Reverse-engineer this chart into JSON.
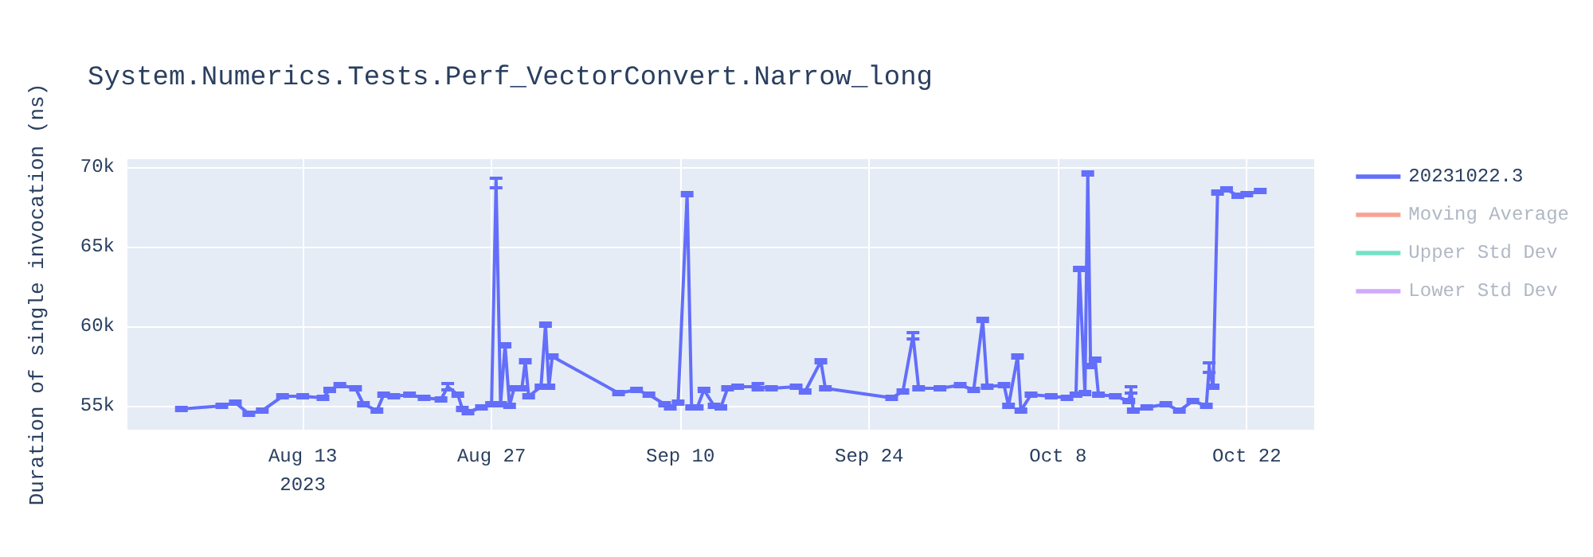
{
  "chart_data": {
    "type": "line",
    "title": "System.Numerics.Tests.Perf_VectorConvert.Narrow_long",
    "ylabel": "Duration of single invocation (ns)",
    "x": [
      "2023-08-04",
      "2023-08-07",
      "2023-08-08",
      "2023-08-09",
      "2023-08-10",
      "2023-08-11T12:00",
      "2023-08-13",
      "2023-08-14T12:00",
      "2023-08-15",
      "2023-08-15T18:00",
      "2023-08-16T22:00",
      "2023-08-17T12:00",
      "2023-08-18T12:00",
      "2023-08-19",
      "2023-08-19T18:00",
      "2023-08-20T22:00",
      "2023-08-22",
      "2023-08-23T06:00",
      "2023-08-23T18:00",
      "2023-08-24T12:00",
      "2023-08-24T20:00",
      "2023-08-25T06:00",
      "2023-08-26T06:00",
      "2023-08-27",
      "2023-08-27T08:00",
      "2023-08-27T16:00",
      "2023-08-28",
      "2023-08-28T08:00",
      "2023-08-28T16:00",
      "2023-08-29T06:00",
      "2023-08-29T12:00",
      "2023-08-29T18:00",
      "2023-08-30T16:00",
      "2023-08-31",
      "2023-08-31T06:00",
      "2023-08-31T12:00",
      "2023-09-05T10:00",
      "2023-09-06T18:00",
      "2023-09-07T16:00",
      "2023-09-08T20:00",
      "2023-09-09T06:00",
      "2023-09-09T20:00",
      "2023-09-10T12:00",
      "2023-09-10T20:00",
      "2023-09-11T06:00",
      "2023-09-11T18:00",
      "2023-09-12T12:00",
      "2023-09-13",
      "2023-09-13T12:00",
      "2023-09-14T06:00",
      "2023-09-15T18:00",
      "2023-09-16T18:00",
      "2023-09-18T14:00",
      "2023-09-19T06:00",
      "2023-09-20T10:00",
      "2023-09-20T18:00",
      "2023-09-25T16:00",
      "2023-09-26T12:00",
      "2023-09-27T06:00",
      "2023-09-27T16:00",
      "2023-09-29T06:00",
      "2023-09-30T18:00",
      "2023-10-01T18:00",
      "2023-10-02T10:00",
      "2023-10-02T18:00",
      "2023-10-04",
      "2023-10-04T08:00",
      "2023-10-05",
      "2023-10-05T06:00",
      "2023-10-06",
      "2023-10-07T12:00",
      "2023-10-08T16:00",
      "2023-10-09T08:00",
      "2023-10-09T14:00",
      "2023-10-10",
      "2023-10-10T05:00",
      "2023-10-10T10:00",
      "2023-10-10T18:00",
      "2023-10-11",
      "2023-10-12T06:00",
      "2023-10-13T06:00",
      "2023-10-13T10:00",
      "2023-10-13T14:00",
      "2023-10-14T14:00",
      "2023-10-16",
      "2023-10-17",
      "2023-10-18",
      "2023-10-19",
      "2023-10-19T05:00",
      "2023-10-19T12:00",
      "2023-10-19T20:00",
      "2023-10-20T12:00",
      "2023-10-21T08:00",
      "2023-10-22",
      "2023-10-23"
    ],
    "series": [
      {
        "name": "20231022.3",
        "color": "#636efa",
        "values": [
          54800,
          55000,
          55200,
          54500,
          54700,
          55600,
          55600,
          55500,
          56000,
          56300,
          56100,
          55100,
          54700,
          55700,
          55600,
          55700,
          55500,
          55400,
          56200,
          55700,
          54800,
          54600,
          54900,
          55100,
          69000,
          55100,
          58800,
          55000,
          56100,
          56100,
          57800,
          55600,
          56200,
          60100,
          56200,
          58100,
          55800,
          56000,
          55700,
          55100,
          54900,
          55200,
          68300,
          54900,
          54900,
          56000,
          55000,
          54900,
          56100,
          56200,
          56200,
          56100,
          56200,
          55900,
          57800,
          56100,
          55500,
          55900,
          59400,
          56100,
          56100,
          56300,
          56000,
          60400,
          56200,
          56300,
          55000,
          58100,
          54700,
          55700,
          55600,
          55500,
          55700,
          63600,
          55800,
          69600,
          57500,
          57900,
          55700,
          55600,
          55300,
          56000,
          54700,
          54900,
          55100,
          54700,
          55300,
          55000,
          57400,
          56200,
          68400,
          68600,
          68200,
          68300,
          68500
        ],
        "errors": [
          100,
          100,
          100,
          100,
          100,
          100,
          100,
          100,
          100,
          100,
          100,
          100,
          100,
          100,
          100,
          100,
          100,
          100,
          200,
          100,
          100,
          100,
          100,
          100,
          300,
          100,
          100,
          100,
          100,
          100,
          100,
          100,
          100,
          100,
          100,
          100,
          100,
          100,
          100,
          100,
          100,
          100,
          100,
          100,
          100,
          100,
          100,
          100,
          100,
          100,
          200,
          100,
          100,
          100,
          100,
          100,
          100,
          100,
          200,
          100,
          100,
          100,
          100,
          100,
          100,
          100,
          100,
          100,
          100,
          100,
          100,
          100,
          100,
          100,
          100,
          100,
          100,
          100,
          100,
          100,
          100,
          200,
          100,
          100,
          100,
          100,
          100,
          100,
          300,
          100,
          100,
          100,
          100,
          100,
          100
        ]
      },
      {
        "name": "Moving Average",
        "color": "#ef553b",
        "values": [
          null,
          null,
          null,
          null,
          null,
          null,
          null,
          null,
          null,
          null,
          null,
          null,
          null,
          null,
          null,
          null,
          null,
          null,
          null,
          null,
          null,
          null,
          null,
          null,
          null,
          null,
          null,
          null,
          null,
          null,
          null,
          null,
          null,
          null,
          null,
          null,
          null,
          null,
          null,
          null,
          null,
          null,
          null,
          null,
          null,
          null,
          null,
          null,
          null,
          null,
          null,
          null,
          null,
          null,
          null,
          null,
          null,
          null,
          null,
          null,
          null,
          null,
          null,
          null,
          null,
          null,
          null,
          null,
          null,
          null,
          null,
          null,
          null,
          null,
          null,
          null,
          null,
          null,
          null,
          null,
          null,
          null,
          null,
          null,
          null,
          null,
          null,
          null,
          null,
          null,
          null,
          null,
          null,
          null,
          null
        ]
      },
      {
        "name": "Upper Std Dev",
        "color": "#00cc96",
        "values": [
          null,
          null,
          null,
          null,
          null,
          null,
          null,
          null,
          null,
          null,
          null,
          null,
          null,
          null,
          null,
          null,
          null,
          null,
          null,
          null,
          null,
          null,
          null,
          null,
          null,
          null,
          null,
          null,
          null,
          null,
          null,
          null,
          null,
          null,
          null,
          null,
          null,
          null,
          null,
          null,
          null,
          null,
          null,
          null,
          null,
          null,
          null,
          null,
          null,
          null,
          null,
          null,
          null,
          null,
          null,
          null,
          null,
          null,
          null,
          null,
          null,
          null,
          null,
          null,
          null,
          null,
          null,
          null,
          null,
          null,
          null,
          null,
          null,
          null,
          null,
          null,
          null,
          null,
          null,
          null,
          null,
          null,
          null,
          null,
          null,
          null,
          null,
          null,
          null,
          null,
          null,
          null,
          null,
          null,
          null
        ]
      },
      {
        "name": "Lower Std Dev",
        "color": "#ab63fa",
        "values": [
          null,
          null,
          null,
          null,
          null,
          null,
          null,
          null,
          null,
          null,
          null,
          null,
          null,
          null,
          null,
          null,
          null,
          null,
          null,
          null,
          null,
          null,
          null,
          null,
          null,
          null,
          null,
          null,
          null,
          null,
          null,
          null,
          null,
          null,
          null,
          null,
          null,
          null,
          null,
          null,
          null,
          null,
          null,
          null,
          null,
          null,
          null,
          null,
          null,
          null,
          null,
          null,
          null,
          null,
          null,
          null,
          null,
          null,
          null,
          null,
          null,
          null,
          null,
          null,
          null,
          null,
          null,
          null,
          null,
          null,
          null,
          null,
          null,
          null,
          null,
          null,
          null,
          null,
          null,
          null,
          null,
          null,
          null,
          null,
          null,
          null,
          null,
          null,
          null,
          null,
          null,
          null,
          null,
          null,
          null
        ]
      }
    ],
    "xlim": [
      "2023-07-31",
      "2023-10-27"
    ],
    "xticks": [
      {
        "value": "2023-08-13",
        "label": "Aug 13\n2023"
      },
      {
        "value": "2023-08-27",
        "label": "Aug 27"
      },
      {
        "value": "2023-09-10",
        "label": "Sep 10"
      },
      {
        "value": "2023-09-24",
        "label": "Sep 24"
      },
      {
        "value": "2023-10-08",
        "label": "Oct 8"
      },
      {
        "value": "2023-10-22",
        "label": "Oct 22"
      }
    ],
    "ylim": [
      53500,
      70500
    ],
    "yticks": [
      {
        "value": 55000,
        "label": "55k"
      },
      {
        "value": 60000,
        "label": "60k"
      },
      {
        "value": 65000,
        "label": "65k"
      },
      {
        "value": 70000,
        "label": "70k"
      }
    ],
    "grid": true,
    "legend": "top right",
    "marker": "none",
    "line_style": "solid"
  }
}
